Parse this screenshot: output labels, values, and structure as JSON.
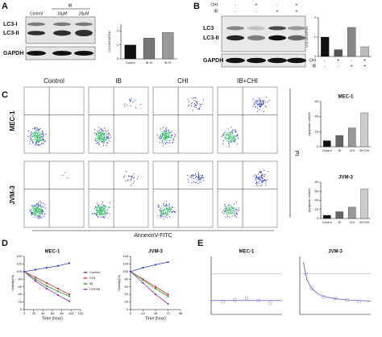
{
  "panel_labels": [
    "A",
    "B",
    "C",
    "D",
    "E"
  ],
  "blot_a": {
    "treatment_header": "IB",
    "lanes": [
      "Control",
      "10μM",
      "20μM"
    ],
    "bands": [
      "LC3-I",
      "LC3-II",
      "GAPDH"
    ]
  },
  "blot_b": {
    "rows": [
      {
        "label": "CHI",
        "signs": [
          "-",
          "+",
          "-",
          "+"
        ]
      },
      {
        "label": "IB",
        "signs": [
          "-",
          "-",
          "+",
          "+"
        ]
      }
    ],
    "bands": [
      "LC3",
      "LC3-II",
      "GAPDH"
    ]
  },
  "flow": {
    "columns": [
      "Control",
      "IB",
      "CHI",
      "IB+CHI"
    ],
    "rows": [
      "MEC-1",
      "JVM-3"
    ],
    "x_label": "AnnexinV-FITC",
    "y_label": "PI"
  },
  "chart_data": [
    {
      "type": "bar",
      "y_label": "LC3-II/GAPDH",
      "categories": [
        "Control",
        "IB 10",
        "IB 20"
      ],
      "values": [
        1.0,
        1.5,
        1.9
      ],
      "colors": [
        "#111111",
        "#777777",
        "#999999"
      ],
      "ylim": [
        0,
        2.5
      ],
      "yticks": [
        0,
        1,
        2
      ]
    },
    {
      "type": "bar",
      "y_label": "LC3-II/GAPDH",
      "categories": [
        null,
        null,
        null,
        null
      ],
      "condition_rows": [
        {
          "label": "CHI",
          "signs": [
            "-",
            "+",
            "-",
            "+"
          ]
        },
        {
          "label": "IB",
          "signs": [
            "-",
            "-",
            "+",
            "+"
          ]
        }
      ],
      "values": [
        1.0,
        0.35,
        1.5,
        0.5
      ],
      "colors": [
        "#111111",
        "#555555",
        "#888888",
        "#bbbbbb"
      ],
      "ylim": [
        0,
        2
      ],
      "yticks": [
        0,
        1,
        2
      ]
    },
    {
      "type": "bar",
      "title": "MEC-1",
      "y_label": "Apoptotic cells%",
      "categories": [
        "Control",
        "IB",
        "CHI",
        "IB+CHI"
      ],
      "values": [
        8,
        15,
        25,
        45
      ],
      "colors": [
        "#111111",
        "#666666",
        "#999999",
        "#cccccc"
      ],
      "ylim": [
        0,
        60
      ],
      "yticks": [
        0,
        20,
        40,
        60
      ]
    },
    {
      "type": "bar",
      "title": "JVM-3",
      "y_label": "Apoptotic cells%",
      "categories": [
        "Control",
        "IB",
        "CHI",
        "IB+CHI"
      ],
      "values": [
        7,
        15,
        25,
        65
      ],
      "colors": [
        "#111111",
        "#666666",
        "#999999",
        "#cccccc"
      ],
      "ylim": [
        0,
        80
      ],
      "yticks": [
        0,
        20,
        40,
        60,
        80
      ]
    },
    {
      "type": "line",
      "title": "MEC-1",
      "x_label": "Time (hour)",
      "y_label": "Viability(%)",
      "legend": "right",
      "x": [
        0,
        24,
        48,
        72,
        96
      ],
      "xlim": [
        0,
        120
      ],
      "xticks": [
        0,
        20,
        40,
        60,
        80,
        100,
        120
      ],
      "ylim": [
        0,
        140
      ],
      "yticks": [
        0,
        20,
        40,
        60,
        80,
        100,
        120,
        140
      ],
      "series": [
        {
          "name": "Control",
          "color": "#2b3fbf",
          "values": [
            100,
            105,
            110,
            115,
            122
          ]
        },
        {
          "name": "CHI",
          "color": "#d62b2b",
          "values": [
            100,
            85,
            70,
            55,
            40
          ]
        },
        {
          "name": "IB",
          "color": "#2e9a2e",
          "values": [
            100,
            80,
            62,
            48,
            35
          ]
        },
        {
          "name": "CHI+IB",
          "color": "#8a2bbf",
          "values": [
            100,
            75,
            55,
            38,
            22
          ]
        }
      ]
    },
    {
      "type": "line",
      "title": "JVM-3",
      "x_label": "Time (hour)",
      "y_label": "Viability(%)",
      "x": [
        0,
        24,
        48,
        72
      ],
      "xlim": [
        0,
        96
      ],
      "xticks": [
        0,
        24,
        48,
        72,
        96
      ],
      "ylim": [
        0,
        140
      ],
      "yticks": [
        0,
        20,
        40,
        60,
        80,
        100,
        120,
        140
      ],
      "series": [
        {
          "name": "Control",
          "color": "#2b3fbf",
          "values": [
            100,
            110,
            118,
            125
          ]
        },
        {
          "name": "CHI",
          "color": "#d62b2b",
          "values": [
            100,
            80,
            60,
            40
          ]
        },
        {
          "name": "IB",
          "color": "#2e9a2e",
          "values": [
            100,
            78,
            55,
            35
          ]
        },
        {
          "name": "CHI+IB",
          "color": "#8a2bbf",
          "values": [
            100,
            70,
            40,
            15
          ]
        }
      ]
    },
    {
      "type": "scatter",
      "title": "MEC-1",
      "x": [
        1,
        2,
        3,
        4,
        5
      ],
      "y": [
        22,
        25,
        28,
        24,
        20
      ],
      "fit_x": [
        0,
        6
      ],
      "fit_y": [
        24,
        24
      ],
      "xlim": [
        0,
        6
      ],
      "ylim": [
        0,
        100
      ]
    },
    {
      "type": "scatter",
      "title": "JVM-3",
      "x": [
        0.5,
        1,
        2,
        3,
        4,
        5
      ],
      "y": [
        70,
        45,
        30,
        28,
        25,
        22
      ],
      "fit_x": [
        0.3,
        0.6,
        1,
        1.5,
        2,
        3,
        4,
        5,
        6
      ],
      "fit_y": [
        90,
        60,
        45,
        36,
        31,
        27,
        25,
        24,
        23
      ],
      "xlim": [
        0,
        6
      ],
      "ylim": [
        0,
        100
      ]
    }
  ]
}
